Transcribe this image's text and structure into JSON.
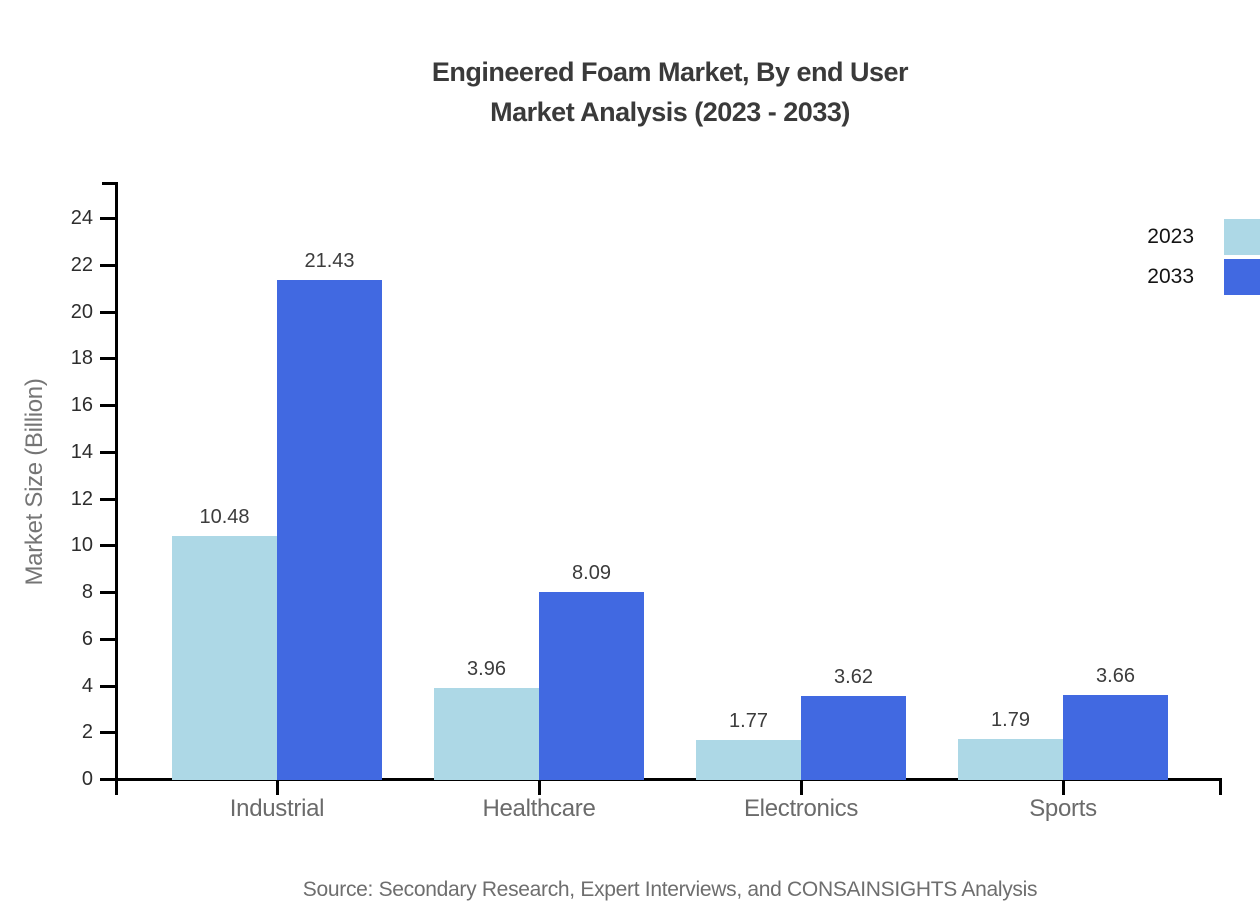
{
  "title": {
    "line1": "Engineered Foam Market, By end User",
    "line2": "Market Analysis (2023 - 2033)"
  },
  "source": "Source: Secondary Research, Expert Interviews, and CONSAINSIGHTS Analysis",
  "colors": {
    "series_2023": "#ADD8E6",
    "series_2033": "#4169E1",
    "axis": "#000000",
    "title_text": "#3a3a3a",
    "muted_text": "#6b6b6b"
  },
  "chart_data": {
    "type": "bar",
    "title": "Engineered Foam Market, By end User Market Analysis (2023 - 2033)",
    "xlabel": "",
    "ylabel": "Market Size (Billion)",
    "categories": [
      "Industrial",
      "Healthcare",
      "Electronics",
      "Sports"
    ],
    "series": [
      {
        "name": "2023",
        "color": "#ADD8E6",
        "values": [
          10.48,
          3.96,
          1.77,
          1.79
        ]
      },
      {
        "name": "2033",
        "color": "#4169E1",
        "values": [
          21.43,
          8.09,
          3.62,
          3.66
        ]
      }
    ],
    "ylim": [
      0,
      25
    ],
    "yticks": [
      0,
      2,
      4,
      6,
      8,
      10,
      12,
      14,
      16,
      18,
      20,
      22,
      24
    ],
    "grid": false,
    "legend_position": "top-right",
    "value_labels": true
  }
}
